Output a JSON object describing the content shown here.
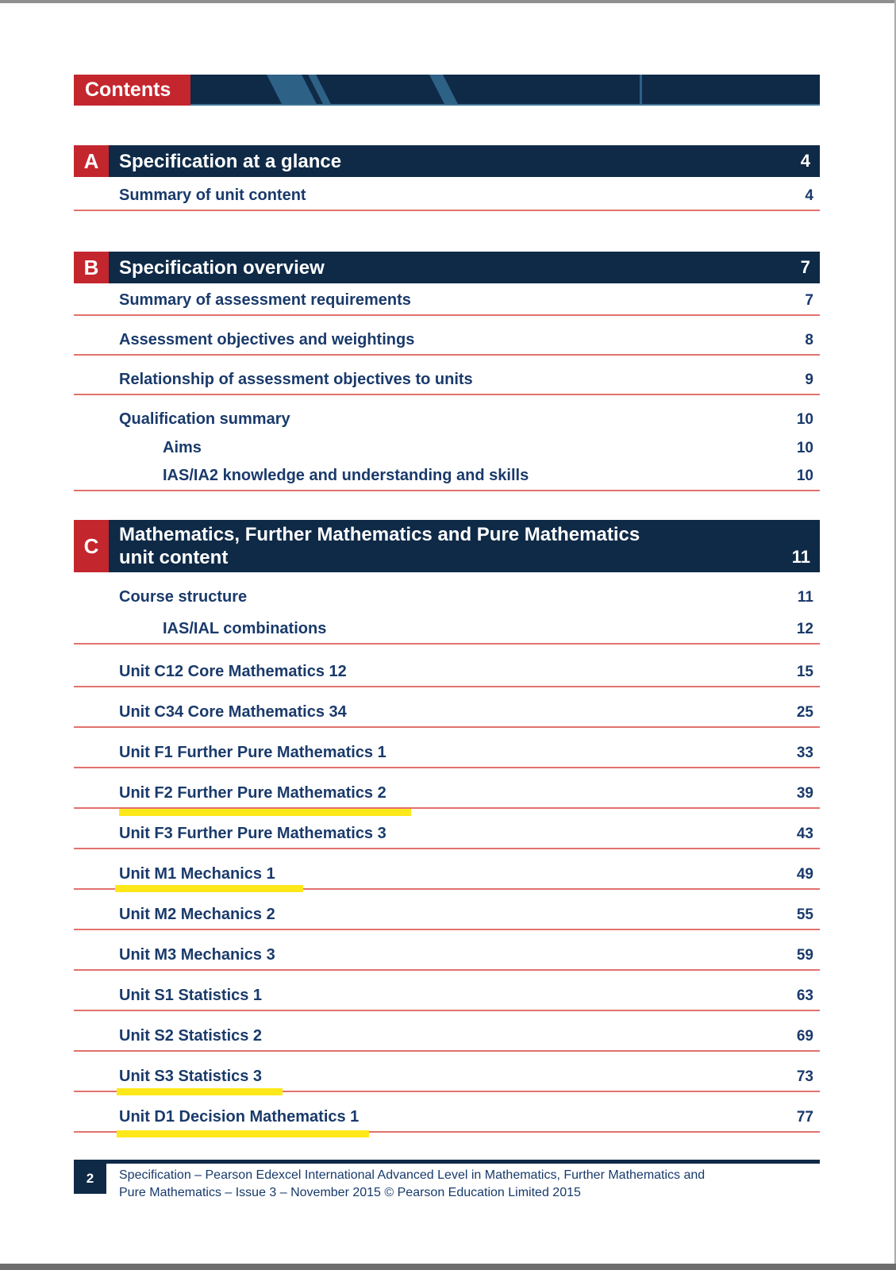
{
  "header": {
    "label": "Contents"
  },
  "colors": {
    "navy": "#0f2a47",
    "red": "#c4262e",
    "rule_red": "#e2726e",
    "highlight_yellow": "#ffe81a",
    "text_navy": "#1a3a6b",
    "stripe_blue": "#2e6186"
  },
  "sections": [
    {
      "letter": "A",
      "title": "Specification at a glance",
      "page": "4",
      "items": [
        {
          "label": "Summary of unit content",
          "page": "4"
        }
      ]
    },
    {
      "letter": "B",
      "title": "Specification overview",
      "page": "7",
      "items": [
        {
          "label": "Summary of assessment requirements",
          "page": "7"
        },
        {
          "label": "Assessment objectives and weightings",
          "page": "8"
        },
        {
          "label": "Relationship of assessment objectives to units",
          "page": "9"
        },
        {
          "label": "Qualification summary",
          "page": "10"
        },
        {
          "label": "Aims",
          "page": "10"
        },
        {
          "label": "IAS/IA2 knowledge and understanding and skills",
          "page": "10"
        }
      ]
    },
    {
      "letter": "C",
      "title": "Mathematics, Further Mathematics and Pure Mathematics",
      "title_line2": "unit content",
      "page": "11",
      "items": [
        {
          "label": "Course structure",
          "page": "11"
        },
        {
          "label": "IAS/IAL combinations",
          "page": "12"
        },
        {
          "label": "Unit C12 Core Mathematics 12",
          "page": "15"
        },
        {
          "label": "Unit C34 Core Mathematics 34",
          "page": "25"
        },
        {
          "label": "Unit F1 Further Pure Mathematics 1",
          "page": "33"
        },
        {
          "label": "Unit F2 Further Pure Mathematics 2",
          "page": "39",
          "highlighted": true
        },
        {
          "label": "Unit F3 Further Pure Mathematics 3",
          "page": "43"
        },
        {
          "label": "Unit M1 Mechanics 1",
          "page": "49",
          "highlighted": true
        },
        {
          "label": "Unit M2 Mechanics 2",
          "page": "55"
        },
        {
          "label": "Unit M3 Mechanics 3",
          "page": "59"
        },
        {
          "label": "Unit S1 Statistics 1",
          "page": "63"
        },
        {
          "label": "Unit S2 Statistics 2",
          "page": "69"
        },
        {
          "label": "Unit S3 Statistics 3",
          "page": "73",
          "highlighted": true
        },
        {
          "label": "Unit D1 Decision Mathematics 1",
          "page": "77",
          "highlighted": true
        }
      ]
    }
  ],
  "footer": {
    "page_number": "2",
    "line1": "Specification – Pearson Edexcel International Advanced Level in Mathematics, Further Mathematics and",
    "line2": "Pure Mathematics – Issue 3 – November 2015 © Pearson Education Limited 2015"
  }
}
